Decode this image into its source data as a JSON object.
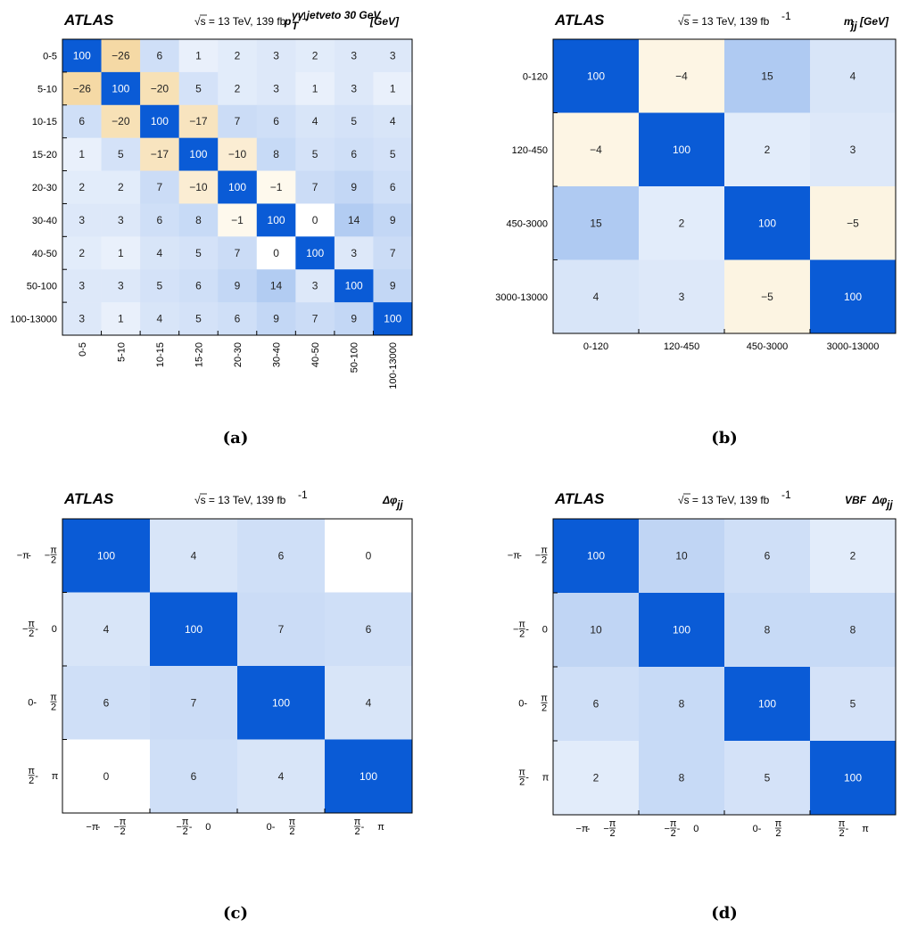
{
  "chart_data": [
    {
      "type": "heatmap",
      "panel": "(a)",
      "experiment": "ATLAS",
      "energy_label": "√s = 13 TeV, 139 fb",
      "energy_exponent": "-1",
      "variable": {
        "main": "p",
        "sub": "T",
        "sup": "γγ jetveto 30 GeV",
        "unit": "[GeV]"
      },
      "categories": [
        "0-5",
        "5-10",
        "10-15",
        "15-20",
        "20-30",
        "30-40",
        "40-50",
        "50-100",
        "100-13000"
      ],
      "values": [
        [
          100,
          -26,
          6,
          1,
          2,
          3,
          2,
          3,
          3
        ],
        [
          -26,
          100,
          -20,
          5,
          2,
          3,
          1,
          3,
          1
        ],
        [
          6,
          -20,
          100,
          -17,
          7,
          6,
          4,
          5,
          4
        ],
        [
          1,
          5,
          -17,
          100,
          -10,
          8,
          5,
          6,
          5
        ],
        [
          2,
          2,
          7,
          -10,
          100,
          -1,
          7,
          9,
          6
        ],
        [
          3,
          3,
          6,
          8,
          -1,
          100,
          0,
          14,
          9
        ],
        [
          2,
          1,
          4,
          5,
          7,
          0,
          100,
          3,
          7
        ],
        [
          3,
          3,
          5,
          6,
          9,
          14,
          3,
          100,
          9
        ],
        [
          3,
          1,
          4,
          5,
          6,
          9,
          7,
          9,
          100
        ]
      ]
    },
    {
      "type": "heatmap",
      "panel": "(b)",
      "experiment": "ATLAS",
      "energy_label": "√s = 13 TeV, 139 fb",
      "energy_exponent": "-1",
      "variable": {
        "main": "m",
        "sub": "jj",
        "sup": "",
        "unit": "[GeV]"
      },
      "categories": [
        "0-120",
        "120-450",
        "450-3000",
        "3000-13000"
      ],
      "values": [
        [
          100,
          -4,
          15,
          4
        ],
        [
          -4,
          100,
          2,
          3
        ],
        [
          15,
          2,
          100,
          -5
        ],
        [
          4,
          3,
          -5,
          100
        ]
      ]
    },
    {
      "type": "heatmap",
      "panel": "(c)",
      "experiment": "ATLAS",
      "energy_label": "√s = 13 TeV, 139 fb",
      "energy_exponent": "-1",
      "variable": {
        "main": "Δφ",
        "sub": "jj",
        "sup": "",
        "unit": "",
        "prefix": ""
      },
      "categories": [
        "−π - −π/2",
        "−π/2 - 0",
        "0 - π/2",
        "π/2 - π"
      ],
      "values": [
        [
          100,
          4,
          6,
          0
        ],
        [
          4,
          100,
          7,
          6
        ],
        [
          6,
          7,
          100,
          4
        ],
        [
          0,
          6,
          4,
          100
        ]
      ]
    },
    {
      "type": "heatmap",
      "panel": "(d)",
      "experiment": "ATLAS",
      "energy_label": "√s = 13 TeV, 139 fb",
      "energy_exponent": "-1",
      "variable": {
        "main": "Δφ",
        "sub": "jj",
        "sup": "",
        "unit": "",
        "prefix": "VBF"
      },
      "categories": [
        "−π - −π/2",
        "−π/2 - 0",
        "0 - π/2",
        "π/2 - π"
      ],
      "values": [
        [
          100,
          10,
          6,
          2
        ],
        [
          10,
          100,
          8,
          8
        ],
        [
          6,
          8,
          100,
          5
        ],
        [
          2,
          8,
          5,
          100
        ]
      ]
    }
  ],
  "colors": {
    "positive_max": "#0a5bd6",
    "negative_max": "#f5d9a5",
    "zero": "#ffffff",
    "grid": "#000000"
  }
}
